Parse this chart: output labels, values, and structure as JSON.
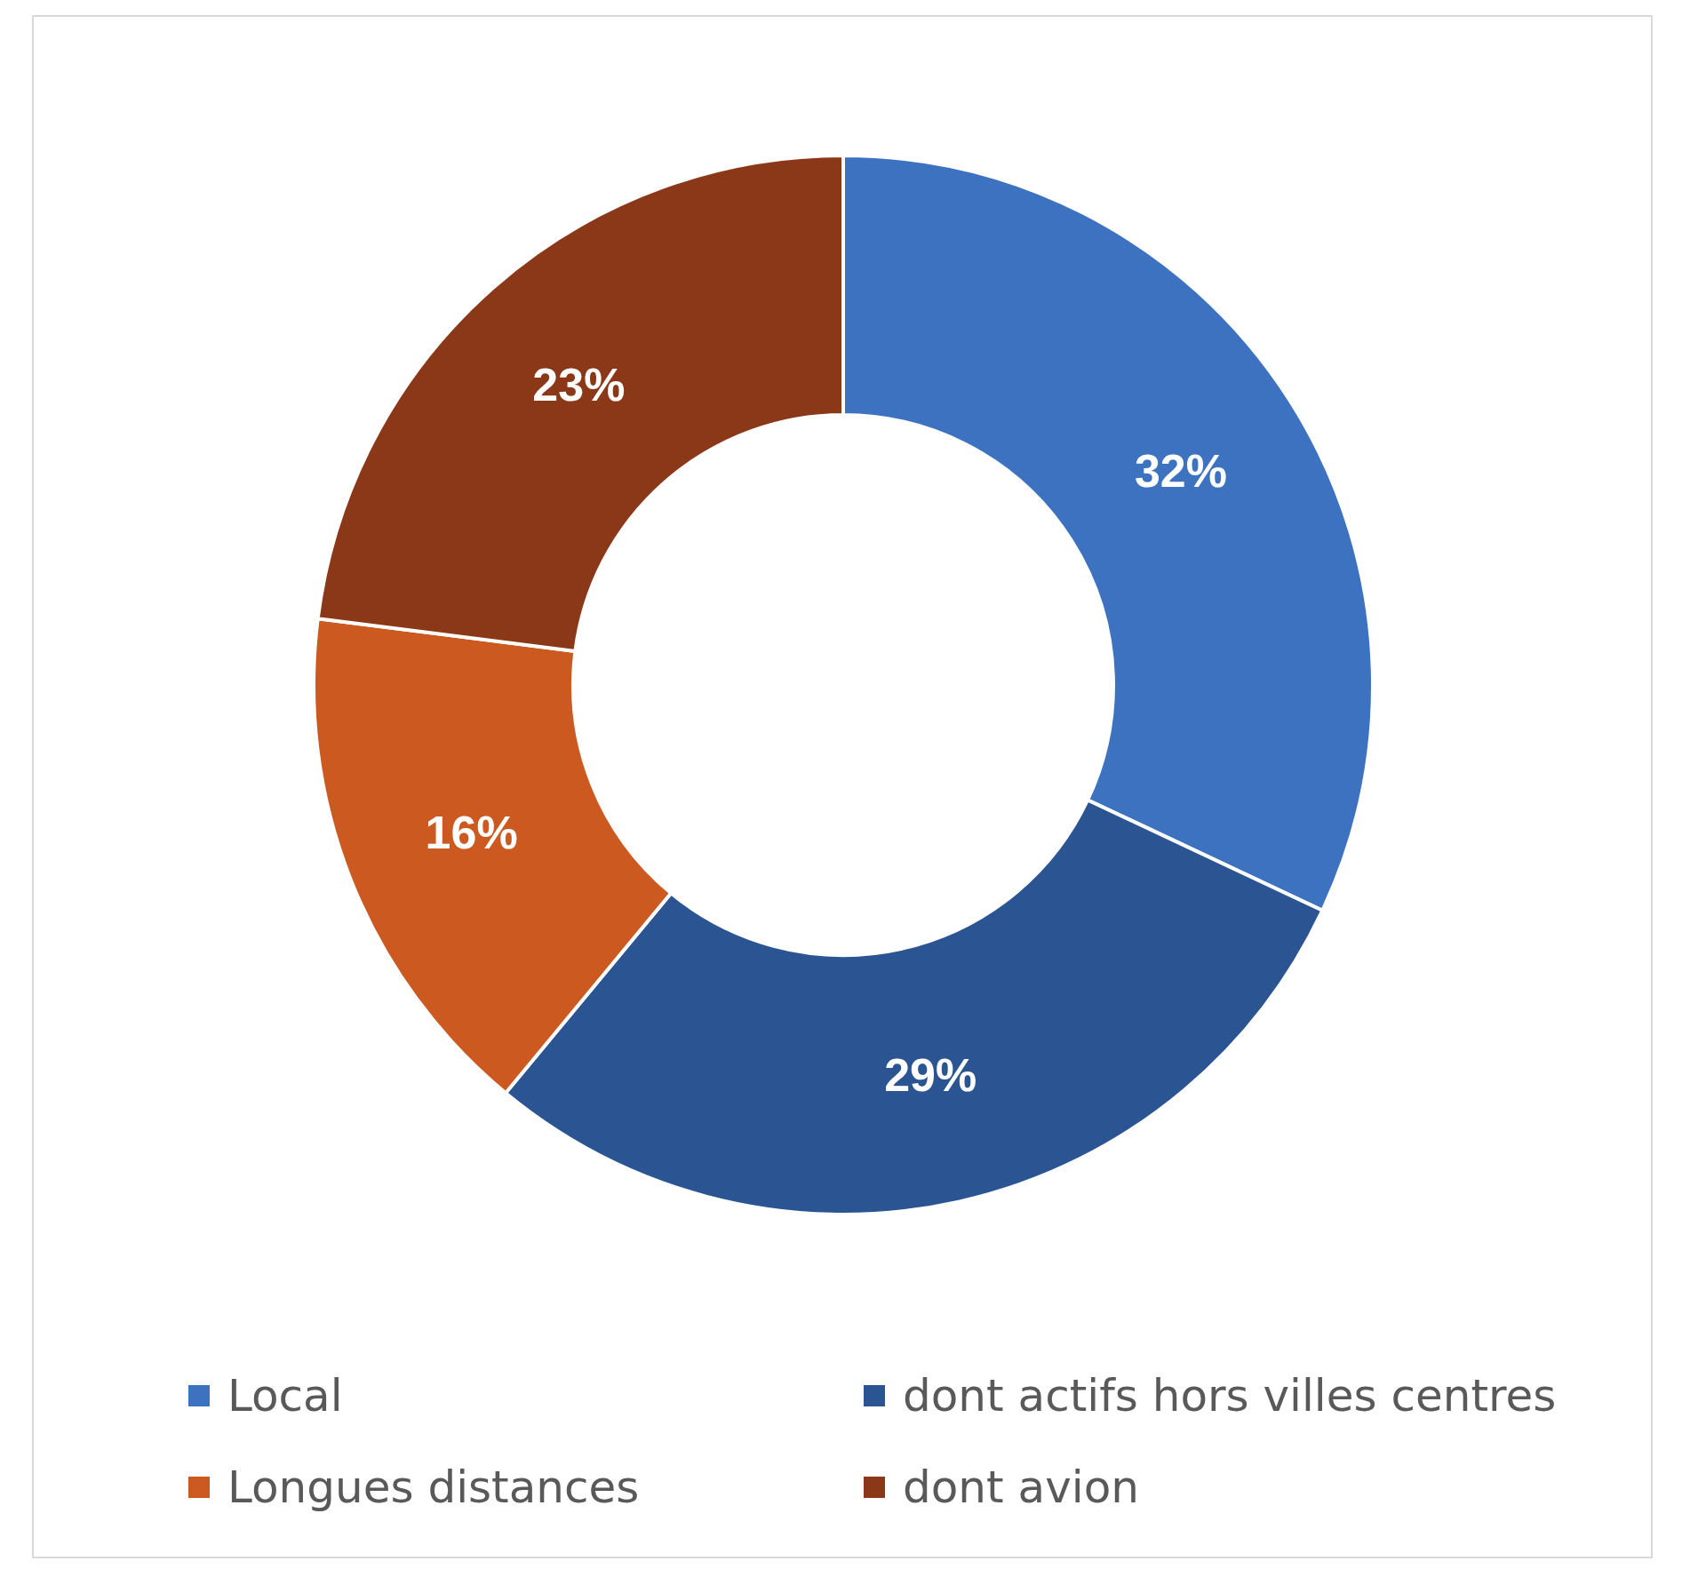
{
  "chart_data": {
    "type": "donut",
    "categories": [
      "Local",
      "dont actifs hors villes centres",
      "Longues distances",
      "dont avion"
    ],
    "values": [
      32,
      29,
      16,
      23
    ],
    "colors": [
      "#3c72bf",
      "#2a5592",
      "#cc5a20",
      "#8a3817"
    ],
    "value_labels": [
      "32%",
      "29%",
      "16%",
      "23%"
    ],
    "legend": "bottom"
  }
}
